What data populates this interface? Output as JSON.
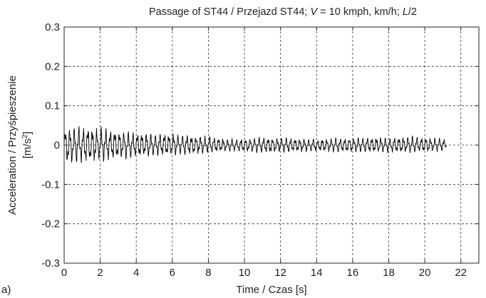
{
  "chart_data": {
    "type": "line",
    "title_parts": {
      "pre": "Passage of ST44 / Przejazd ST44; ",
      "v_var": "V",
      "mid": " = 10 kmph, km/h; ",
      "l_var": "L",
      "post": "/2"
    },
    "xlabel": "Time / Czas [s]",
    "ylabel_line1": "Acceleration / Przyśpieszenie",
    "ylabel_line2_prefix": "[m/s",
    "ylabel_line2_sup": "2",
    "ylabel_line2_suffix": "]",
    "panel_label": "a)",
    "xlim": [
      0,
      23
    ],
    "ylim": [
      -0.3,
      0.3
    ],
    "x_ticks": [
      0,
      2,
      4,
      6,
      8,
      10,
      12,
      14,
      16,
      18,
      20,
      22
    ],
    "y_ticks": [
      -0.3,
      -0.2,
      -0.1,
      0,
      0.1,
      0.2,
      0.3
    ],
    "x_tick_labels": [
      "0",
      "2",
      "4",
      "6",
      "8",
      "10",
      "12",
      "14",
      "16",
      "18",
      "20",
      "22"
    ],
    "y_tick_labels": [
      "-0.3",
      "-0.2",
      "-0.1",
      "0",
      "0.1",
      "0.2",
      "0.3"
    ],
    "grid": true,
    "series": [
      {
        "color": "#000000",
        "x": [
          0,
          0.5,
          1,
          1.5,
          2,
          2.5,
          3,
          3.5,
          4,
          4.5,
          5,
          5.5,
          6,
          6.5,
          7,
          7.5,
          8,
          8.5,
          9,
          9.5,
          10,
          10.5,
          11,
          11.5,
          12,
          12.5,
          13,
          13.5,
          14,
          14.5,
          15,
          15.5,
          16,
          16.5,
          17,
          17.5,
          18,
          18.5,
          19,
          19.5,
          20,
          20.5,
          21,
          21.2
        ],
        "y_max": [
          0.045,
          0.053,
          0.054,
          0.05,
          0.047,
          0.045,
          0.042,
          0.04,
          0.037,
          0.035,
          0.032,
          0.034,
          0.033,
          0.03,
          0.028,
          0.025,
          0.025,
          0.02,
          0.018,
          0.017,
          0.018,
          0.019,
          0.022,
          0.02,
          0.02,
          0.02,
          0.018,
          0.018,
          0.017,
          0.018,
          0.019,
          0.02,
          0.02,
          0.021,
          0.022,
          0.023,
          0.021,
          0.022,
          0.025,
          0.024,
          0.022,
          0.02,
          0.02,
          0.01
        ],
        "y_min": [
          -0.058,
          -0.055,
          -0.05,
          -0.048,
          -0.045,
          -0.043,
          -0.04,
          -0.037,
          -0.035,
          -0.033,
          -0.03,
          -0.03,
          -0.029,
          -0.027,
          -0.026,
          -0.025,
          -0.022,
          -0.02,
          -0.018,
          -0.018,
          -0.02,
          -0.021,
          -0.022,
          -0.022,
          -0.02,
          -0.02,
          -0.019,
          -0.018,
          -0.018,
          -0.018,
          -0.02,
          -0.02,
          -0.021,
          -0.02,
          -0.02,
          -0.02,
          -0.02,
          -0.022,
          -0.021,
          -0.02,
          -0.02,
          -0.018,
          -0.016,
          -0.008
        ]
      }
    ]
  }
}
